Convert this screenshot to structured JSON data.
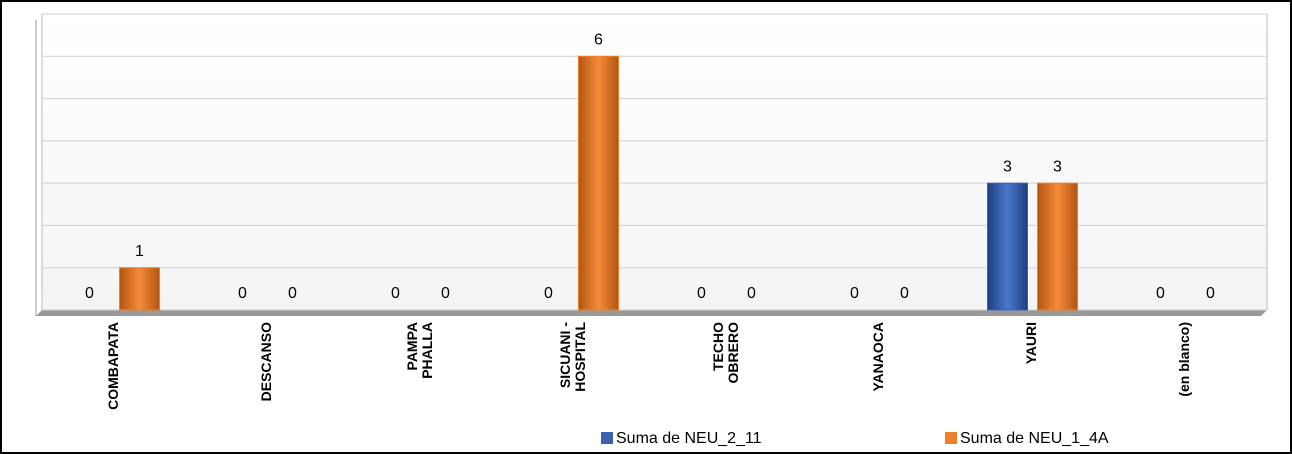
{
  "chart_data": {
    "type": "bar",
    "categories": [
      "COMBAPATA",
      "DESCANSO",
      "PAMPA\nPHALLA",
      "SICUANI -\nHOSPITAL",
      "TECHO\nOBRERO",
      "YANAOCA",
      "YAURI",
      "(en blanco)"
    ],
    "series": [
      {
        "name": "Suma de NEU_2_11",
        "color": "#3a62b0",
        "values": [
          0,
          0,
          0,
          0,
          0,
          0,
          3,
          0
        ]
      },
      {
        "name": "Suma de NEU_1_4A",
        "color": "#f07f2b",
        "values": [
          1,
          0,
          0,
          6,
          0,
          0,
          3,
          0
        ]
      }
    ],
    "ylim": [
      0,
      7
    ],
    "yticks": [
      0,
      1,
      2,
      3,
      4,
      5,
      6,
      7
    ],
    "grid": true
  }
}
